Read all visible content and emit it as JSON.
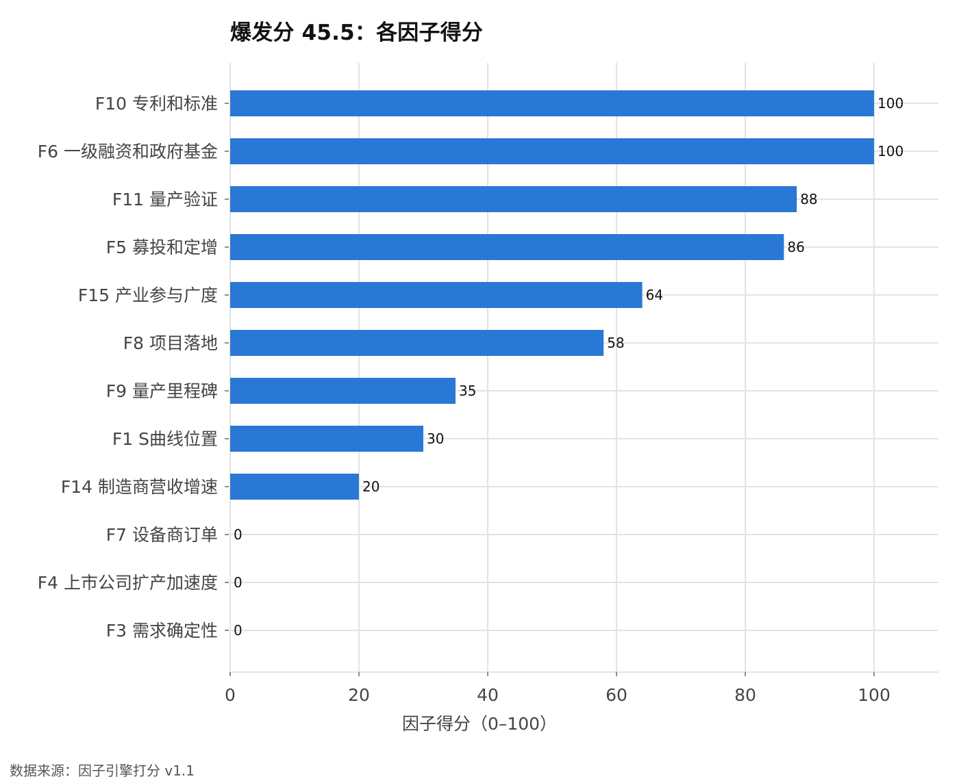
{
  "chart_data": {
    "type": "bar",
    "orientation": "horizontal",
    "title": "爆发分 45.5：各因子得分",
    "xlabel": "因子得分（0–100）",
    "ylabel": "",
    "xlim": [
      0,
      110
    ],
    "x_ticks": [
      0,
      20,
      40,
      60,
      80,
      100
    ],
    "grid": true,
    "legend": "none",
    "bar_color": "#2a78d6",
    "categories": [
      "F10 专利和标准",
      "F6 一级融资和政府基金",
      "F11 量产验证",
      "F5 募投和定增",
      "F15 产业参与广度",
      "F8 项目落地",
      "F9 量产里程碑",
      "F1 S曲线位置",
      "F14 制造商营收增速",
      "F7 设备商订单",
      "F4 上市公司扩产加速度",
      "F3 需求确定性"
    ],
    "values": [
      100,
      100,
      88,
      86,
      64,
      58,
      35,
      30,
      20,
      0,
      0,
      0
    ],
    "data_labels": [
      "100",
      "100",
      "88",
      "86",
      "64",
      "58",
      "35",
      "30",
      "20",
      "0",
      "0",
      "0"
    ]
  },
  "footer": {
    "source": "数据来源：因子引擎打分 v1.1"
  },
  "colors": {
    "grid": "#e3e3e3",
    "axis_text": "#444444",
    "label_text": "#111111"
  }
}
